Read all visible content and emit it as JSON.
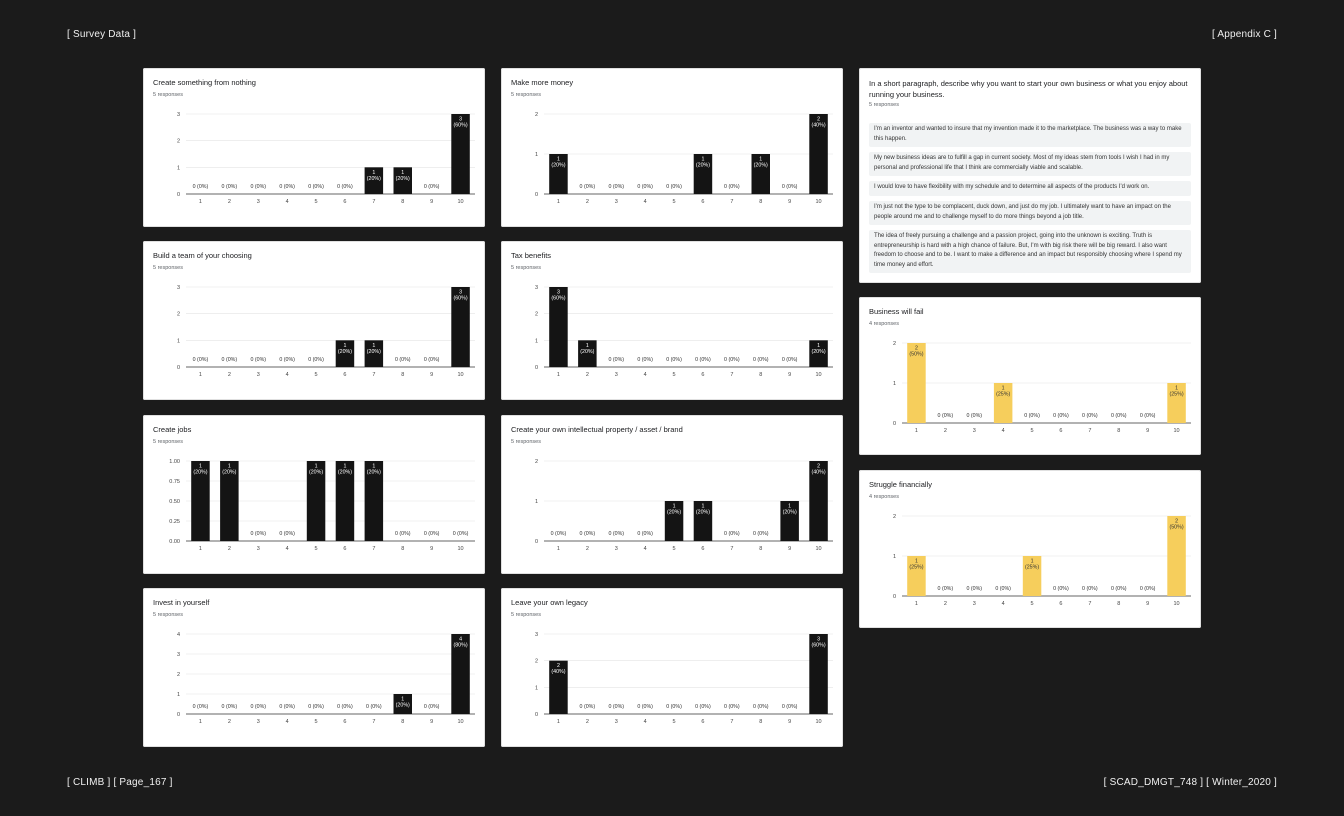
{
  "header": {
    "left": "[ Survey Data ]",
    "right": "[ Appendix C ]"
  },
  "footer": {
    "left": "[ CLIMB ] [ Page_167 ]",
    "right": "[ SCAD_DMGT_748 ] [ Winter_2020 ]"
  },
  "colors": {
    "background": "#1b1b1b",
    "bar_dark": "#141414",
    "bar_yellow": "#f6ce5c"
  },
  "paragraph_card": {
    "title": "In a short paragraph, describe why you want to start your own business or what you enjoy about running your business.",
    "subtitle": "5 responses",
    "responses": [
      "I'm an inventor and wanted to insure that my invention made it to the marketplace. The business was a way to make this happen.",
      "My new business ideas are to fulfill a gap in current society. Most of my ideas stem from tools I wish I had in my personal and professional life that I think are commercially viable and scalable.",
      "I would love to have flexibility with my schedule and to determine all aspects of the products I'd work on.",
      "I'm just not the type to be complacent, duck down, and just do my job. I ultimately want to have an impact on the people around me and to challenge myself to do more things beyond a job title.",
      "The idea of freely pursuing a challenge and a passion project, going into the unknown is exciting. Truth is entrepreneurship is hard with a high chance of failure. But, I'm with big risk there will be big reward. I also want freedom to choose and to be. I want to make a difference and an impact but responsibly choosing where I spend my time money and effort."
    ]
  },
  "chart_data": [
    {
      "type": "bar",
      "title": "Create something from nothing",
      "subtitle": "5 responses",
      "categories": [
        "1",
        "2",
        "3",
        "4",
        "5",
        "6",
        "7",
        "8",
        "9",
        "10"
      ],
      "values": [
        0,
        0,
        0,
        0,
        0,
        0,
        1,
        1,
        0,
        3
      ],
      "labels": [
        "0 (0%)",
        "0 (0%)",
        "0 (0%)",
        "0 (0%)",
        "0 (0%)",
        "0 (0%)",
        "1\n(20%)",
        "1\n(20%)",
        "0 (0%)",
        "3\n(60%)"
      ],
      "ylim": [
        0,
        3
      ],
      "yticks": [
        "0",
        "1",
        "2",
        "3"
      ],
      "color": "#141414"
    },
    {
      "type": "bar",
      "title": "Make more money",
      "subtitle": "5 responses",
      "categories": [
        "1",
        "2",
        "3",
        "4",
        "5",
        "6",
        "7",
        "8",
        "9",
        "10"
      ],
      "values": [
        1,
        0,
        0,
        0,
        0,
        1,
        0,
        1,
        0,
        2
      ],
      "labels": [
        "1\n(20%)",
        "0 (0%)",
        "0 (0%)",
        "0 (0%)",
        "0 (0%)",
        "1\n(20%)",
        "0 (0%)",
        "1\n(20%)",
        "0 (0%)",
        "2\n(40%)"
      ],
      "ylim": [
        0,
        2
      ],
      "yticks": [
        "0",
        "1",
        "2"
      ],
      "color": "#141414"
    },
    {
      "type": "bar",
      "title": "Build a team of your choosing",
      "subtitle": "5 responses",
      "categories": [
        "1",
        "2",
        "3",
        "4",
        "5",
        "6",
        "7",
        "8",
        "9",
        "10"
      ],
      "values": [
        0,
        0,
        0,
        0,
        0,
        1,
        1,
        0,
        0,
        3
      ],
      "labels": [
        "0 (0%)",
        "0 (0%)",
        "0 (0%)",
        "0 (0%)",
        "0 (0%)",
        "1\n(20%)",
        "1\n(20%)",
        "0 (0%)",
        "0 (0%)",
        "3\n(60%)"
      ],
      "ylim": [
        0,
        3
      ],
      "yticks": [
        "0",
        "1",
        "2",
        "3"
      ],
      "color": "#141414"
    },
    {
      "type": "bar",
      "title": "Tax benefits",
      "subtitle": "5 responses",
      "categories": [
        "1",
        "2",
        "3",
        "4",
        "5",
        "6",
        "7",
        "8",
        "9",
        "10"
      ],
      "values": [
        3,
        1,
        0,
        0,
        0,
        0,
        0,
        0,
        0,
        1
      ],
      "labels": [
        "3\n(60%)",
        "1\n(20%)",
        "0 (0%)",
        "0 (0%)",
        "0 (0%)",
        "0 (0%)",
        "0 (0%)",
        "0 (0%)",
        "0 (0%)",
        "1\n(20%)"
      ],
      "ylim": [
        0,
        3
      ],
      "yticks": [
        "0",
        "1",
        "2",
        "3"
      ],
      "color": "#141414"
    },
    {
      "type": "bar",
      "title": "Create jobs",
      "subtitle": "5 responses",
      "categories": [
        "1",
        "2",
        "3",
        "4",
        "5",
        "6",
        "7",
        "8",
        "9",
        "10"
      ],
      "values": [
        1,
        1,
        0,
        0,
        1,
        1,
        1,
        0,
        0,
        0
      ],
      "labels": [
        "1\n(20%)",
        "1\n(20%)",
        "0 (0%)",
        "0 (0%)",
        "1\n(20%)",
        "1\n(20%)",
        "1\n(20%)",
        "0 (0%)",
        "0 (0%)",
        "0 (0%)"
      ],
      "ylim": [
        0,
        1
      ],
      "yticks": [
        "0.00",
        "0.25",
        "0.50",
        "0.75",
        "1.00"
      ],
      "color": "#141414"
    },
    {
      "type": "bar",
      "title": "Create your own intellectual property / asset / brand",
      "subtitle": "5 responses",
      "categories": [
        "1",
        "2",
        "3",
        "4",
        "5",
        "6",
        "7",
        "8",
        "9",
        "10"
      ],
      "values": [
        0,
        0,
        0,
        0,
        1,
        1,
        0,
        0,
        1,
        2
      ],
      "labels": [
        "0 (0%)",
        "0 (0%)",
        "0 (0%)",
        "0 (0%)",
        "1\n(20%)",
        "1\n(20%)",
        "0 (0%)",
        "0 (0%)",
        "1\n(20%)",
        "2\n(40%)"
      ],
      "ylim": [
        0,
        2
      ],
      "yticks": [
        "0",
        "1",
        "2"
      ],
      "color": "#141414"
    },
    {
      "type": "bar",
      "title": "Invest in yourself",
      "subtitle": "5 responses",
      "categories": [
        "1",
        "2",
        "3",
        "4",
        "5",
        "6",
        "7",
        "8",
        "9",
        "10"
      ],
      "values": [
        0,
        0,
        0,
        0,
        0,
        0,
        0,
        1,
        0,
        4
      ],
      "labels": [
        "0 (0%)",
        "0 (0%)",
        "0 (0%)",
        "0 (0%)",
        "0 (0%)",
        "0 (0%)",
        "0 (0%)",
        "1\n(20%)",
        "0 (0%)",
        "4\n(80%)"
      ],
      "ylim": [
        0,
        4
      ],
      "yticks": [
        "0",
        "1",
        "2",
        "3",
        "4"
      ],
      "color": "#141414"
    },
    {
      "type": "bar",
      "title": "Leave your own legacy",
      "subtitle": "5 responses",
      "categories": [
        "1",
        "2",
        "3",
        "4",
        "5",
        "6",
        "7",
        "8",
        "9",
        "10"
      ],
      "values": [
        2,
        0,
        0,
        0,
        0,
        0,
        0,
        0,
        0,
        3
      ],
      "labels": [
        "2\n(40%)",
        "0 (0%)",
        "0 (0%)",
        "0 (0%)",
        "0 (0%)",
        "0 (0%)",
        "0 (0%)",
        "0 (0%)",
        "0 (0%)",
        "3\n(60%)"
      ],
      "ylim": [
        0,
        3
      ],
      "yticks": [
        "0",
        "1",
        "2",
        "3"
      ],
      "color": "#141414"
    },
    {
      "type": "bar",
      "title": "Business will fail",
      "subtitle": "4 responses",
      "categories": [
        "1",
        "2",
        "3",
        "4",
        "5",
        "6",
        "7",
        "8",
        "9",
        "10"
      ],
      "values": [
        2,
        0,
        0,
        1,
        0,
        0,
        0,
        0,
        0,
        1
      ],
      "labels": [
        "2\n(50%)",
        "0 (0%)",
        "0 (0%)",
        "1\n(25%)",
        "0 (0%)",
        "0 (0%)",
        "0 (0%)",
        "0 (0%)",
        "0 (0%)",
        "1\n(25%)"
      ],
      "ylim": [
        0,
        2
      ],
      "yticks": [
        "0",
        "1",
        "2"
      ],
      "color": "#f6ce5c"
    },
    {
      "type": "bar",
      "title": "Struggle financially",
      "subtitle": "4 responses",
      "categories": [
        "1",
        "2",
        "3",
        "4",
        "5",
        "6",
        "7",
        "8",
        "9",
        "10"
      ],
      "values": [
        1,
        0,
        0,
        0,
        1,
        0,
        0,
        0,
        0,
        2
      ],
      "labels": [
        "1\n(25%)",
        "0 (0%)",
        "0 (0%)",
        "0 (0%)",
        "1\n(25%)",
        "0 (0%)",
        "0 (0%)",
        "0 (0%)",
        "0 (0%)",
        "2\n(50%)"
      ],
      "ylim": [
        0,
        2
      ],
      "yticks": [
        "0",
        "1",
        "2"
      ],
      "color": "#f6ce5c"
    }
  ]
}
